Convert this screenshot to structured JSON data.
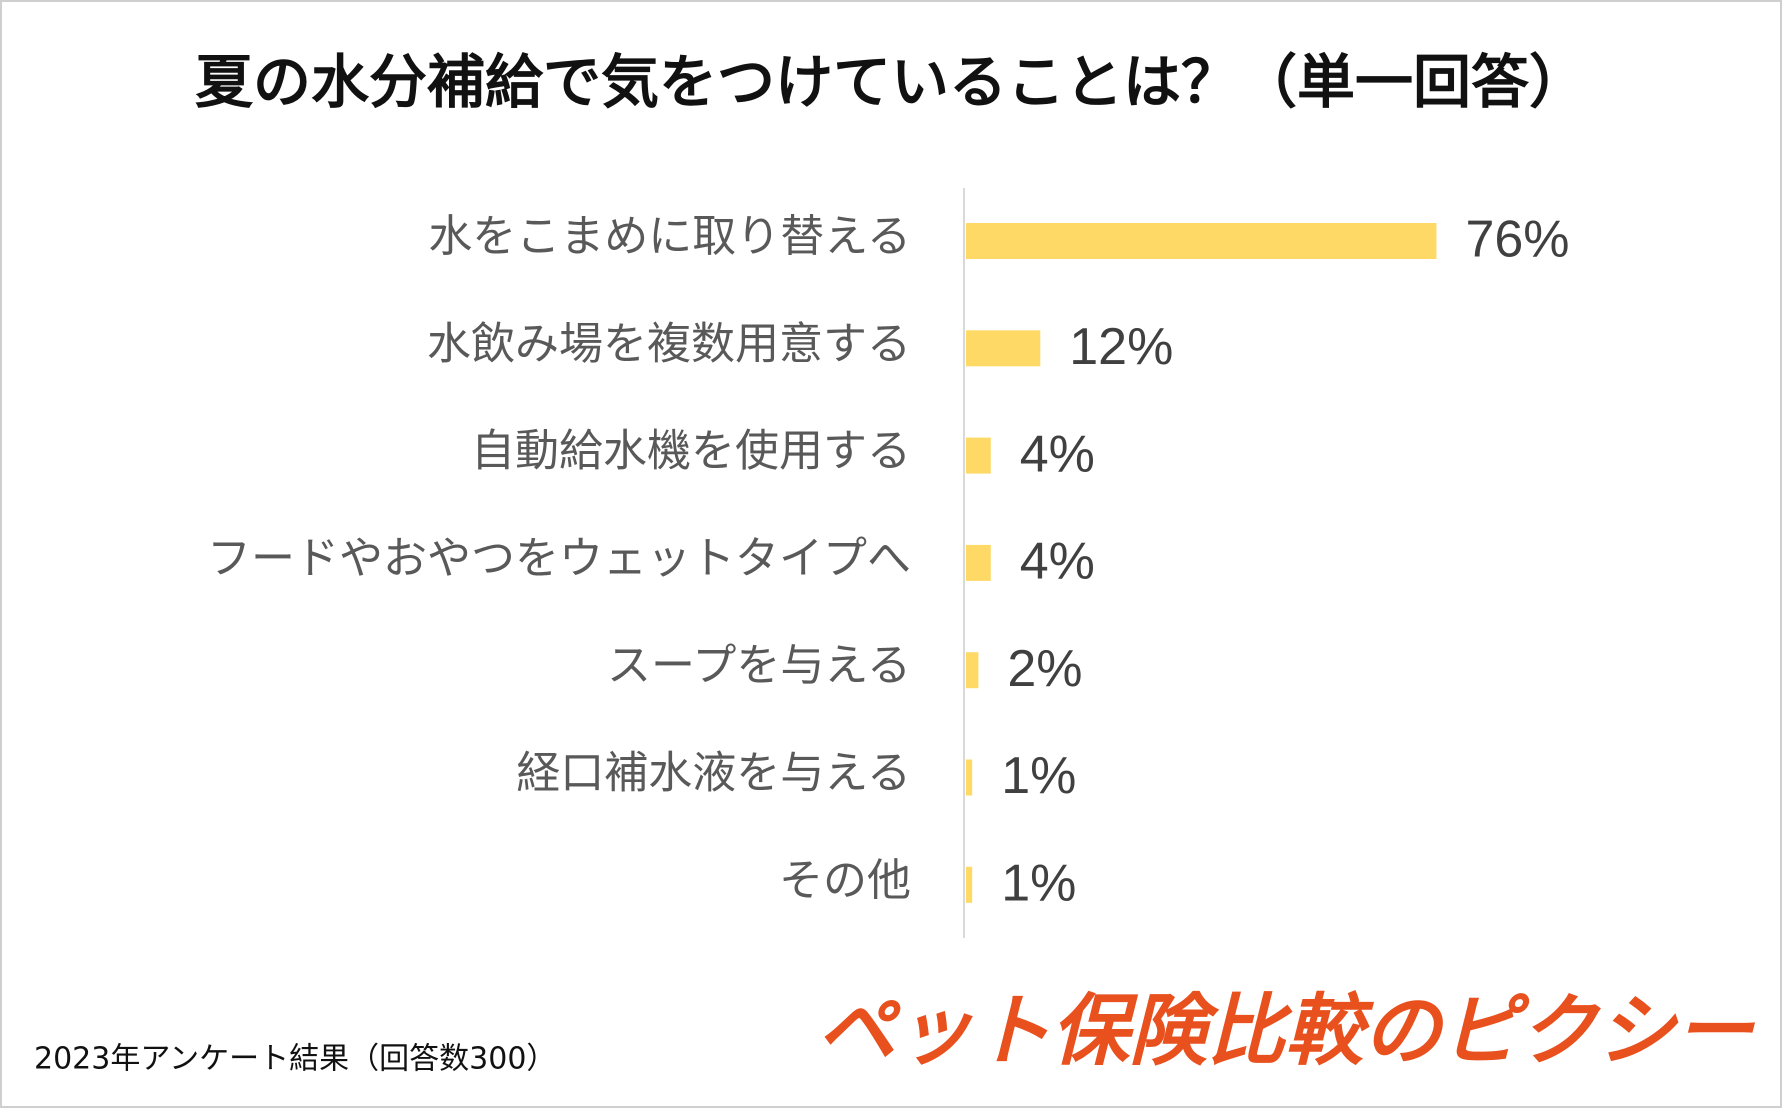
{
  "chart_data": {
    "type": "bar",
    "orientation": "horizontal",
    "title": "夏の水分補給で気をつけていることは？（単一回答）",
    "categories": [
      "水をこまめに取り替える",
      "水飲み場を複数用意する",
      "自動給水機を使用する",
      "フードやおやつをウェットタイプへ",
      "スープを与える",
      "経口補水液を与える",
      "その他"
    ],
    "values": [
      76,
      12,
      4,
      4,
      2,
      1,
      1
    ],
    "value_labels": [
      "76%",
      "12%",
      "4%",
      "4%",
      "2%",
      "1%",
      "1%"
    ],
    "color": "#ffd966",
    "footnote": "2023年アンケート結果（回答数300）",
    "brand": "ペット保険比較のピクシー"
  }
}
